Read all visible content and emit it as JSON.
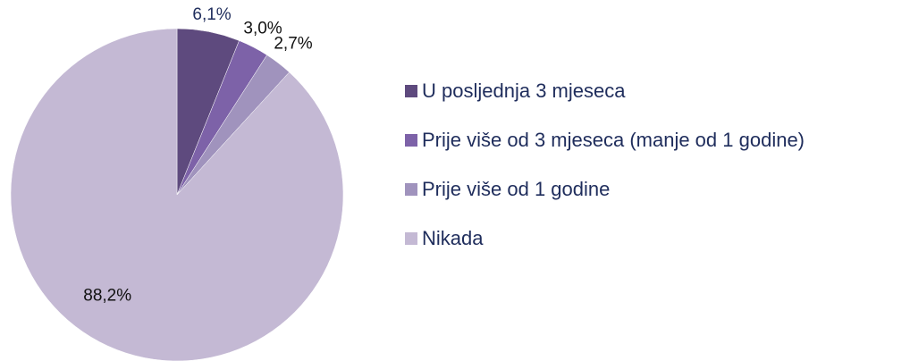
{
  "chart_data": {
    "type": "pie",
    "categories": [
      "U posljednja 3 mjeseca",
      "Prije više od 3 mjeseca (manje od 1 godine)",
      "Prije više od 1 godine",
      "Nikada"
    ],
    "values": [
      6.1,
      3.0,
      2.7,
      88.2
    ],
    "value_labels": [
      "6,1%",
      "3,0%",
      "2,7%",
      "88,2%"
    ],
    "colors": [
      "#5e4a7e",
      "#7d62a8",
      "#a093bd",
      "#c4b9d4"
    ],
    "legend": "right"
  }
}
